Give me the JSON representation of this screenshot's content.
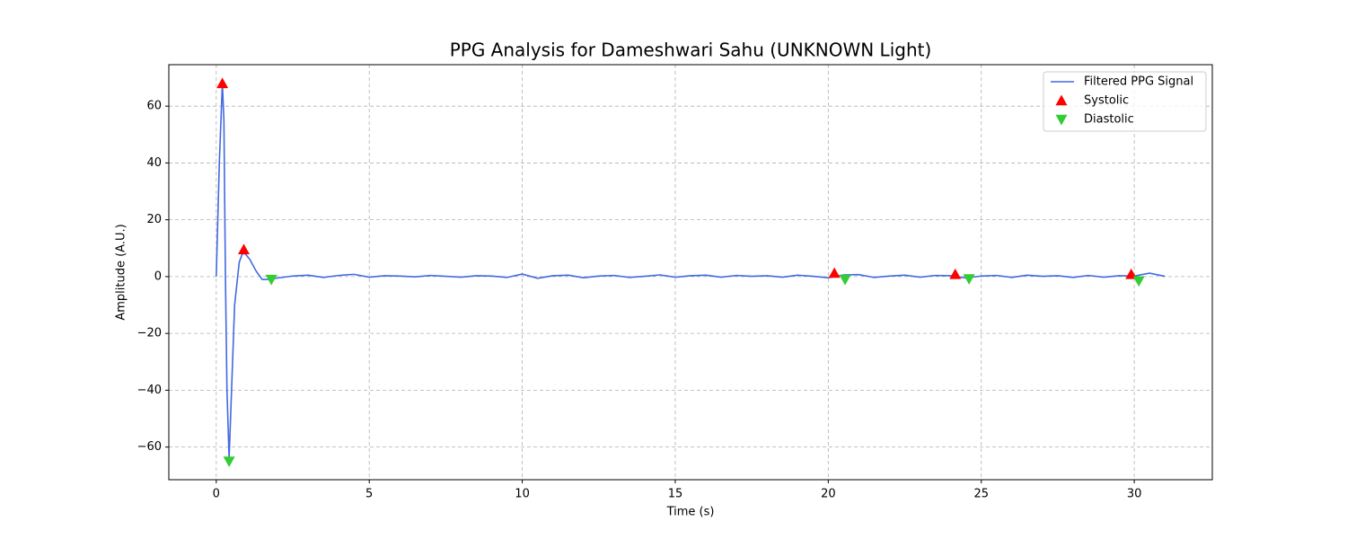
{
  "chart_data": {
    "type": "line",
    "title": "PPG Analysis for Dameshwari Sahu (UNKNOWN Light)",
    "xlabel": "Time (s)",
    "ylabel": "Amplitude (A.U.)",
    "xlim": [
      -1.55,
      32.55
    ],
    "ylim": [
      -71.5,
      74.6
    ],
    "xticks": [
      0,
      5,
      10,
      15,
      20,
      25,
      30
    ],
    "yticks": [
      {
        "value": -60,
        "label": "−60"
      },
      {
        "value": -40,
        "label": "−40"
      },
      {
        "value": -20,
        "label": "−20"
      },
      0,
      20,
      40,
      60
    ],
    "grid": true,
    "legend": "upper right",
    "series": [
      {
        "name": "Filtered PPG Signal",
        "color": "#4169e1",
        "marker": "line",
        "x": [
          0,
          0.1,
          0.2,
          0.25,
          0.3,
          0.35,
          0.42,
          0.5,
          0.6,
          0.75,
          0.85,
          0.95,
          1.1,
          1.3,
          1.5,
          1.7,
          2.0,
          2.5,
          3.0,
          3.5,
          4.0,
          4.5,
          5.0,
          5.5,
          6.0,
          6.5,
          7.0,
          7.5,
          8.0,
          8.5,
          9.0,
          9.5,
          10.0,
          10.5,
          11.0,
          11.5,
          12.0,
          12.5,
          13.0,
          13.5,
          14.0,
          14.5,
          15.0,
          15.5,
          16.0,
          16.5,
          17.0,
          17.5,
          18.0,
          18.5,
          19.0,
          19.5,
          20.0,
          20.5,
          21.0,
          21.5,
          22.0,
          22.5,
          23.0,
          23.5,
          24.0,
          24.5,
          25.0,
          25.5,
          26.0,
          26.5,
          27.0,
          27.5,
          28.0,
          28.5,
          29.0,
          29.5,
          30.0,
          30.5,
          31.0
        ],
        "values": [
          0,
          40,
          68,
          55,
          0,
          -40,
          -64,
          -40,
          -10,
          5,
          8,
          8,
          6,
          2,
          -1,
          -1,
          -0.5,
          0.2,
          0.5,
          -0.3,
          0.4,
          0.8,
          -0.2,
          0.3,
          0.2,
          -0.1,
          0.4,
          0.1,
          -0.2,
          0.3,
          0.2,
          -0.3,
          0.9,
          -0.6,
          0.3,
          0.5,
          -0.4,
          0.2,
          0.4,
          -0.3,
          0.1,
          0.6,
          -0.2,
          0.3,
          0.5,
          -0.2,
          0.4,
          0.1,
          0.3,
          -0.2,
          0.5,
          0.1,
          -0.4,
          0.6,
          0.7,
          -0.3,
          0.2,
          0.5,
          -0.2,
          0.4,
          0.3,
          -0.5,
          0.2,
          0.4,
          -0.3,
          0.5,
          0.1,
          0.3,
          -0.3,
          0.4,
          -0.2,
          0.3,
          0.2,
          1.2,
          0.1
        ]
      },
      {
        "name": "Systolic",
        "color": "#ff0000",
        "marker": "triangle-up",
        "x": [
          0.2,
          0.9,
          20.2,
          24.15,
          29.9
        ],
        "values": [
          68,
          9.5,
          1.2,
          0.8,
          0.8
        ]
      },
      {
        "name": "Diastolic",
        "color": "#32cd32",
        "marker": "triangle-down",
        "x": [
          0.42,
          1.8,
          20.55,
          24.6,
          30.15
        ],
        "values": [
          -65,
          -1,
          -1,
          -0.8,
          -1.5
        ]
      }
    ]
  }
}
